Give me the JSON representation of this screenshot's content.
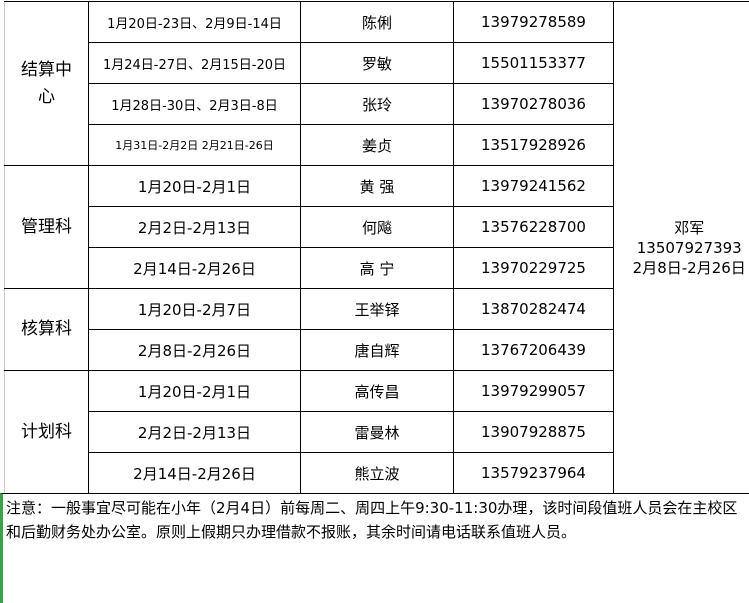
{
  "sheet": {
    "groups": [
      {
        "dept": "结算中心",
        "rows": [
          {
            "dates": "1月20日-23日、2月9日-14日",
            "name": "陈俐",
            "phone": "13979278589"
          },
          {
            "dates": "1月24日-27日、2月15日-20日",
            "name": "罗敏",
            "phone": "15501153377"
          },
          {
            "dates": "1月28日-30日、2月3日-8日",
            "name": "张玲",
            "phone": "13970278036"
          },
          {
            "dates": "1月31日-2月2日   2月21日-26日",
            "name": "姜贞",
            "phone": "13517928926"
          }
        ]
      },
      {
        "dept": "管理科",
        "rows": [
          {
            "dates": "1月20日-2月1日",
            "name": "黄 强",
            "phone": "13979241562"
          },
          {
            "dates": "2月2日-2月13日",
            "name": "何飚",
            "phone": "13576228700"
          },
          {
            "dates": "2月14日-2月26日",
            "name": "高 宁",
            "phone": "13970229725"
          }
        ]
      },
      {
        "dept": "核算科",
        "rows": [
          {
            "dates": "1月20日-2月7日",
            "name": "王举铎",
            "phone": "13870282474"
          },
          {
            "dates": "2月8日-2月26日",
            "name": "唐自辉",
            "phone": "13767206439"
          }
        ]
      },
      {
        "dept": "计划科",
        "rows": [
          {
            "dates": "1月20日-2月1日",
            "name": "高传昌",
            "phone": "13979299057"
          },
          {
            "dates": "2月2日-2月13日",
            "name": "雷曼林",
            "phone": "13907928875"
          },
          {
            "dates": "2月14日-2月26日",
            "name": "熊立波",
            "phone": "13579237964"
          }
        ]
      }
    ],
    "leader": {
      "name": "邓军",
      "phone": "13507927393",
      "dates": "2月8日-2月26日"
    },
    "note": "注意：一般事宜尽可能在小年（2月4日）前每周二、周四上午9:30-11:30办理，该时间段值班人员会在主校区和后勤财务处办公室。原则上假期只办理借款不报账，其余时间请电话联系值班人员。"
  }
}
